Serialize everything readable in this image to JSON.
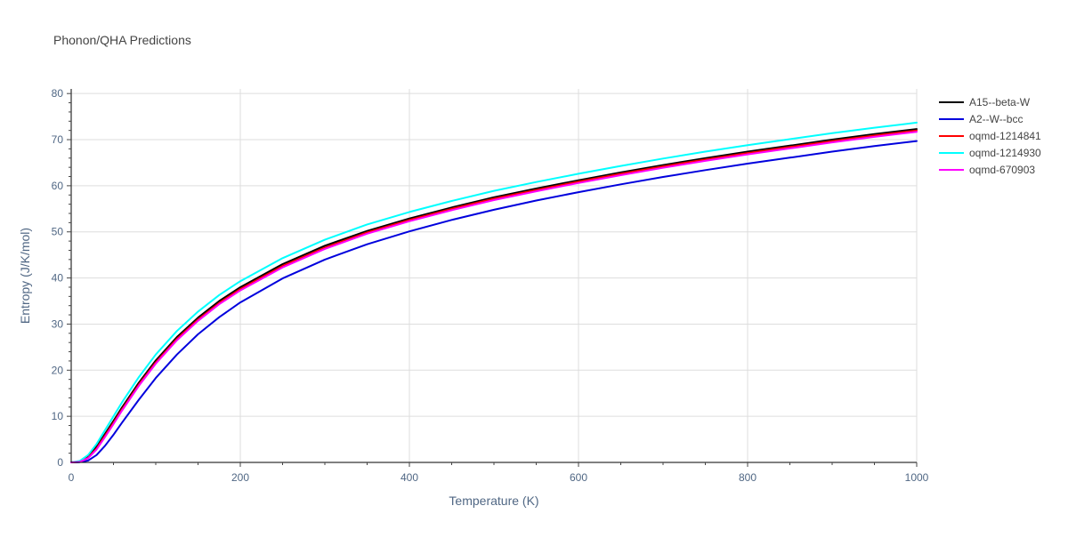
{
  "chart_data": {
    "type": "line",
    "title": "Phonon/QHA Predictions",
    "xlabel": "Temperature (K)",
    "ylabel": "Entropy (J/K/mol)",
    "xlim": [
      0,
      1000
    ],
    "ylim": [
      0,
      81
    ],
    "x_ticks": [
      0,
      200,
      400,
      600,
      800,
      1000
    ],
    "y_ticks": [
      0,
      10,
      20,
      30,
      40,
      50,
      60,
      70,
      80
    ],
    "x_tick_labels": [
      "0",
      "200",
      "400",
      "600",
      "800",
      "1000"
    ],
    "y_tick_labels": [
      "0",
      "10",
      "20",
      "30",
      "40",
      "50",
      "60",
      "70",
      "80"
    ],
    "grid": true,
    "legend_position": "top-right",
    "x": [
      0,
      10,
      20,
      30,
      40,
      50,
      60,
      80,
      100,
      125,
      150,
      175,
      200,
      250,
      300,
      350,
      400,
      450,
      500,
      550,
      600,
      650,
      700,
      750,
      800,
      850,
      900,
      950,
      1000
    ],
    "series": [
      {
        "name": "A15--beta-W",
        "color": "#000000",
        "values": [
          0,
          0.2,
          1.2,
          3.4,
          6.2,
          9.0,
          11.9,
          17.3,
          22.1,
          27.2,
          31.4,
          35.0,
          38.0,
          43.0,
          47.0,
          50.2,
          52.9,
          55.3,
          57.5,
          59.4,
          61.2,
          62.9,
          64.5,
          66.0,
          67.4,
          68.7,
          70.0,
          71.2,
          72.3
        ]
      },
      {
        "name": "A2--W--bcc",
        "color": "#0000dd",
        "values": [
          0,
          0.05,
          0.4,
          1.6,
          3.6,
          6.0,
          8.6,
          13.6,
          18.3,
          23.4,
          27.8,
          31.5,
          34.7,
          39.9,
          44.0,
          47.3,
          50.1,
          52.6,
          54.8,
          56.8,
          58.6,
          60.3,
          61.9,
          63.4,
          64.8,
          66.1,
          67.4,
          68.6,
          69.7
        ]
      },
      {
        "name": "oqmd-1214841",
        "color": "#ff0000",
        "values": [
          0,
          0.15,
          1.0,
          3.0,
          5.8,
          8.6,
          11.5,
          16.9,
          21.7,
          26.8,
          31.0,
          34.6,
          37.6,
          42.6,
          46.6,
          49.9,
          52.6,
          55.0,
          57.2,
          59.1,
          60.9,
          62.6,
          64.2,
          65.7,
          67.1,
          68.4,
          69.7,
          70.9,
          72.0
        ]
      },
      {
        "name": "oqmd-1214930",
        "color": "#00ffff",
        "values": [
          0,
          0.3,
          1.6,
          4.0,
          7.0,
          10.0,
          13.0,
          18.5,
          23.4,
          28.5,
          32.7,
          36.3,
          39.3,
          44.3,
          48.3,
          51.6,
          54.3,
          56.7,
          58.9,
          60.8,
          62.6,
          64.3,
          65.9,
          67.4,
          68.8,
          70.1,
          71.4,
          72.6,
          73.7
        ]
      },
      {
        "name": "oqmd-670903",
        "color": "#ff00ff",
        "values": [
          0,
          0.12,
          0.9,
          2.8,
          5.5,
          8.3,
          11.2,
          16.6,
          21.4,
          26.5,
          30.7,
          34.3,
          37.3,
          42.3,
          46.3,
          49.6,
          52.3,
          54.7,
          56.9,
          58.8,
          60.6,
          62.3,
          63.9,
          65.4,
          66.8,
          68.1,
          69.4,
          70.6,
          71.7
        ]
      }
    ]
  }
}
